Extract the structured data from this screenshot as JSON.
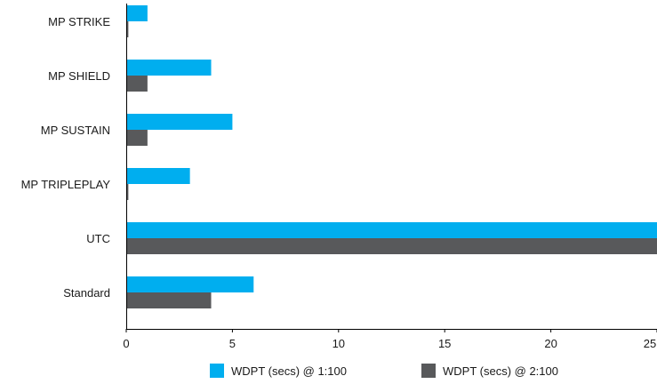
{
  "chart_data": {
    "type": "bar",
    "orientation": "horizontal",
    "title": "",
    "xlabel": "",
    "ylabel": "",
    "categories": [
      "MP STRIKE",
      "MP SHIELD",
      "MP SUSTAIN",
      "MP TRIPLEPLAY",
      "UTC",
      "Standard"
    ],
    "series": [
      {
        "name": "WDPT (secs) @ 1:100",
        "color": "#00aeef",
        "values": [
          1,
          4,
          5,
          3,
          25,
          6
        ]
      },
      {
        "name": "WDPT (secs) @ 2:100",
        "color": "#58595b",
        "values": [
          0.1,
          1,
          1,
          0.1,
          25,
          4
        ]
      }
    ],
    "xlim": [
      0,
      25
    ],
    "xticks": [
      "0",
      "5",
      "10",
      "15",
      "20",
      "25"
    ],
    "grid": false,
    "legend_position": "bottom"
  }
}
